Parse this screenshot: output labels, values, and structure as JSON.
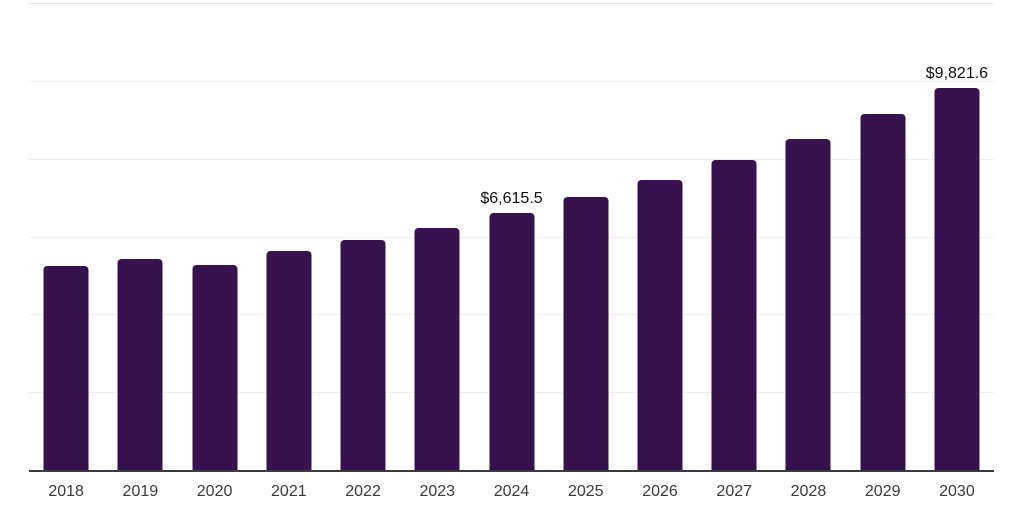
{
  "chart_data": {
    "type": "bar",
    "title": "",
    "xlabel": "",
    "ylabel": "",
    "categories": [
      "2018",
      "2019",
      "2020",
      "2021",
      "2022",
      "2023",
      "2024",
      "2025",
      "2026",
      "2027",
      "2028",
      "2029",
      "2030"
    ],
    "values": [
      5255,
      5435,
      5270,
      5615,
      5900,
      6230,
      6615.5,
      7025,
      7460,
      7975,
      8515,
      9140,
      9821.6
    ],
    "data_labels": [
      "",
      "",
      "",
      "",
      "",
      "",
      "$6,615.5",
      "",
      "",
      "",
      "",
      "",
      "$9,821.6"
    ],
    "ylim": [
      0,
      12000
    ],
    "gridline_values": [
      2000,
      4000,
      6000,
      8000,
      10000,
      12000
    ],
    "y_tick_labels_visible": false,
    "grid": "horizontal",
    "legend": "none",
    "colors": {
      "bar": "#37124e",
      "grid_line": "#efefef",
      "top_grid_line": "#e6e6e6",
      "axis_line": "#3a3a41",
      "tick_label": "#3b3b3b",
      "data_label": "#111111",
      "background": "#ffffff"
    }
  }
}
